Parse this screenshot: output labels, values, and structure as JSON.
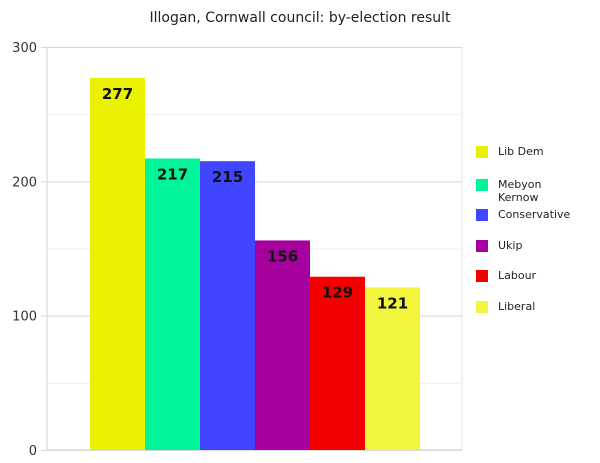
{
  "chart_data": {
    "type": "bar",
    "title": "Illogan, Cornwall council: by-election result",
    "categories": [
      "Lib Dem",
      "Mebyon Kernow",
      "Conservative",
      "Ukip",
      "Labour",
      "Liberal"
    ],
    "values": [
      277,
      217,
      215,
      156,
      129,
      121
    ],
    "colors": [
      "#eaf200",
      "#00f59a",
      "#4045ff",
      "#a6009e",
      "#f50000",
      "#f2f53d"
    ],
    "ylim": [
      0,
      300
    ],
    "yticks": [
      "0",
      "100",
      "200",
      "300"
    ],
    "grid": true,
    "legend": "right",
    "data_labels": true
  }
}
